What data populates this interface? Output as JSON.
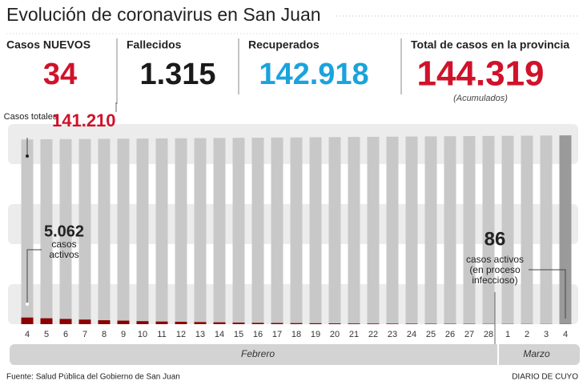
{
  "header": {
    "title": "Evolución de coronavirus en San Juan"
  },
  "stats": [
    {
      "label": "Casos NUEVOS",
      "value": "34"
    },
    {
      "label": "Fallecidos",
      "value": "1.315"
    },
    {
      "label": "Recuperados",
      "value": "142.918"
    },
    {
      "label": "Total de casos en la provincia",
      "value": "144.319",
      "note": "(Acumulados)"
    }
  ],
  "chart_data": {
    "type": "bar",
    "categories": [
      "4",
      "5",
      "6",
      "7",
      "8",
      "9",
      "10",
      "11",
      "12",
      "13",
      "14",
      "15",
      "16",
      "17",
      "18",
      "19",
      "20",
      "21",
      "22",
      "23",
      "24",
      "25",
      "26",
      "27",
      "28",
      "1",
      "2",
      "3",
      "4"
    ],
    "series": [
      {
        "color": "#c8c8c8",
        "highlight_color": "#9a9a9a",
        "values": [
          141210,
          141330,
          141450,
          141560,
          141670,
          141780,
          141890,
          142000,
          142110,
          142220,
          142330,
          142440,
          142550,
          142660,
          142770,
          142880,
          142990,
          143100,
          143210,
          143320,
          143430,
          143540,
          143650,
          143760,
          143870,
          143980,
          144090,
          144200,
          144319
        ],
        "value_labels": [
          "141.210",
          null,
          null,
          null,
          null,
          null,
          null,
          null,
          null,
          null,
          null,
          null,
          null,
          null,
          null,
          null,
          null,
          null,
          null,
          null,
          null,
          null,
          null,
          null,
          null,
          null,
          null,
          null,
          null
        ]
      },
      {
        "color": "#8b0000",
        "values": [
          5062,
          4500,
          4000,
          3500,
          3000,
          2700,
          2300,
          2000,
          1800,
          1600,
          1400,
          1200,
          1000,
          900,
          800,
          700,
          600,
          500,
          450,
          400,
          350,
          300,
          250,
          220,
          180,
          150,
          120,
          100,
          86
        ],
        "value_labels": [
          "5.062",
          null,
          null,
          null,
          null,
          null,
          null,
          null,
          null,
          null,
          null,
          null,
          null,
          null,
          null,
          null,
          null,
          null,
          null,
          null,
          null,
          null,
          null,
          null,
          null,
          null,
          null,
          null,
          "86"
        ]
      }
    ],
    "ylim": [
      0,
      145000
    ],
    "annotations": {
      "total": "Casos totales",
      "first_active": "casos activos",
      "last_active": "casos activos (en proceso infeccioso)"
    },
    "months": [
      {
        "name": "Febrero",
        "from": 0,
        "to": 24
      },
      {
        "name": "Marzo",
        "from": 25,
        "to": 28
      }
    ]
  },
  "footer": {
    "source": "Fuente: Salud Pública del Gobierno de San Juan",
    "credit": "DIARIO DE CUYO"
  }
}
